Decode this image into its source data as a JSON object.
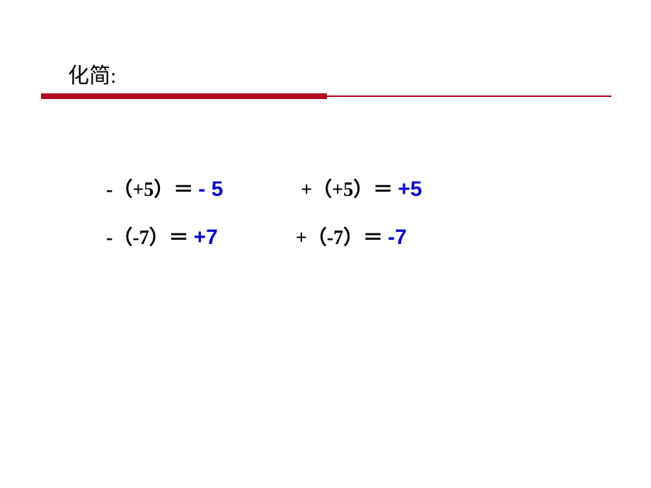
{
  "title": "化简:",
  "colors": {
    "title": "#000000",
    "equation": "#000000",
    "answer": "#0906d3",
    "divider": "#b3001c",
    "background": "#ffffff"
  },
  "typography": {
    "title_fontsize": 30,
    "equation_fontsize": 28,
    "answer_fontsize": 30,
    "title_font": "SimSun",
    "equation_font": "SimSun",
    "answer_font": "Arial"
  },
  "divider": {
    "thick_width": 404,
    "thick_height": 8,
    "thin_width": 402,
    "thin_height": 2
  },
  "rows": [
    {
      "left": {
        "expr": "-（+5）＝ ",
        "ans": "- 5"
      },
      "right": {
        "expr": "+（+5）＝ ",
        "ans": "+5"
      }
    },
    {
      "left": {
        "expr": "-（-7）＝ ",
        "ans": "+7"
      },
      "right": {
        "expr": "+（-7）＝ ",
        "ans": "-7"
      }
    }
  ]
}
